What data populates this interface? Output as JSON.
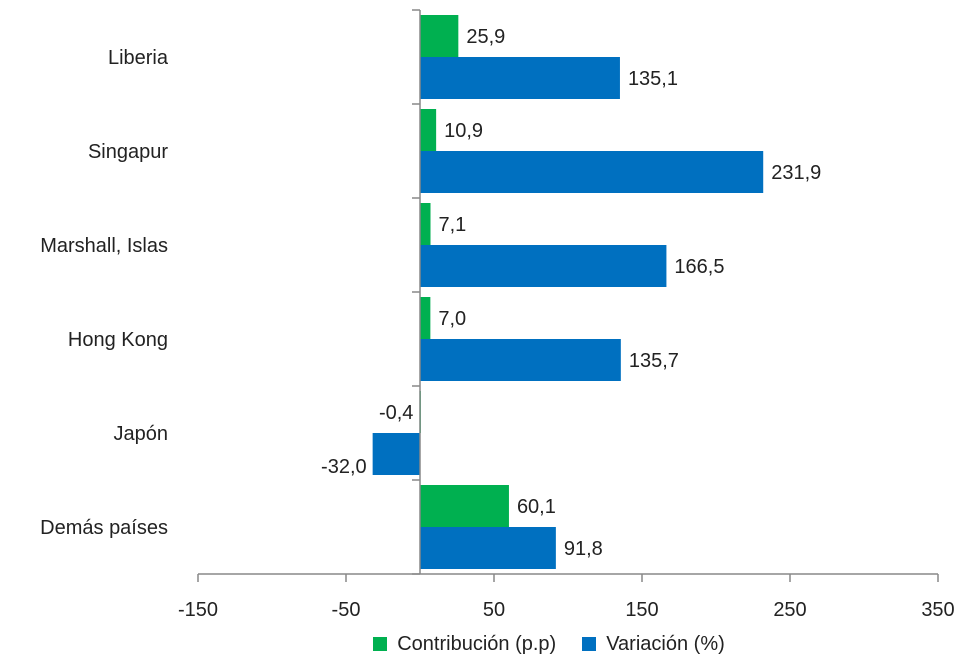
{
  "chart_data": {
    "type": "bar",
    "orientation": "horizontal",
    "categories": [
      "Liberia",
      "Singapur",
      "Marshall, Islas",
      "Hong Kong",
      "Japón",
      "Demás países"
    ],
    "series": [
      {
        "name": "Contribución (p.p)",
        "color": "#00b050",
        "values": [
          25.9,
          10.9,
          7.1,
          7.0,
          -0.4,
          60.1
        ],
        "labels": [
          "25,9",
          "10,9",
          "7,1",
          "7,0",
          "-0,4",
          "60,1"
        ]
      },
      {
        "name": "Variación (%)",
        "color": "#0070c0",
        "values": [
          135.1,
          231.9,
          166.5,
          135.7,
          -32.0,
          91.8
        ],
        "labels": [
          "135,1",
          "231,9",
          "166,5",
          "135,7",
          "-32,0",
          "91,8"
        ]
      }
    ],
    "xlim": [
      -150,
      350
    ],
    "xticks": [
      "-150",
      "-50",
      "50",
      "150",
      "250",
      "350"
    ],
    "grid": false,
    "legend_position": "bottom"
  }
}
